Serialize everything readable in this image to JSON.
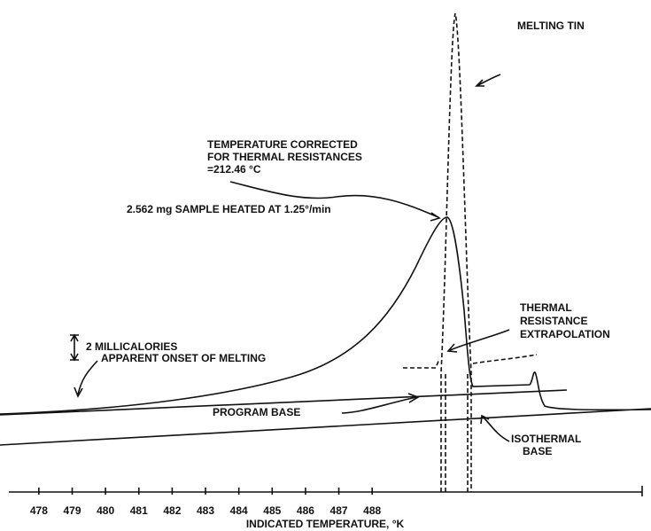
{
  "chart_data": {
    "type": "line",
    "xlabel": "INDICATED TEMPERATURE, °K",
    "xlim": [
      477.1,
      496.1
    ],
    "xticks": [
      478,
      479,
      480,
      481,
      482,
      483,
      484,
      485,
      486,
      487,
      488
    ],
    "annotations": {
      "melting_tin": "MELTING TIN",
      "corrected_1": "TEMPERATURE CORRECTED",
      "corrected_2": "FOR THERMAL RESISTANCES",
      "corrected_3": "=212.46 °C",
      "sample": "2.562 mg SAMPLE HEATED AT 1.25°/min",
      "scale": "2 MILLICALORIES",
      "thermal_1": "THERMAL",
      "thermal_2": "RESISTANCE",
      "thermal_3": "EXTRAPOLATION",
      "onset": "APPARENT ONSET OF MELTING",
      "program_base": "PROGRAM BASE",
      "isothermal_1": "ISOTHERMAL",
      "isothermal_2": "BASE"
    }
  }
}
